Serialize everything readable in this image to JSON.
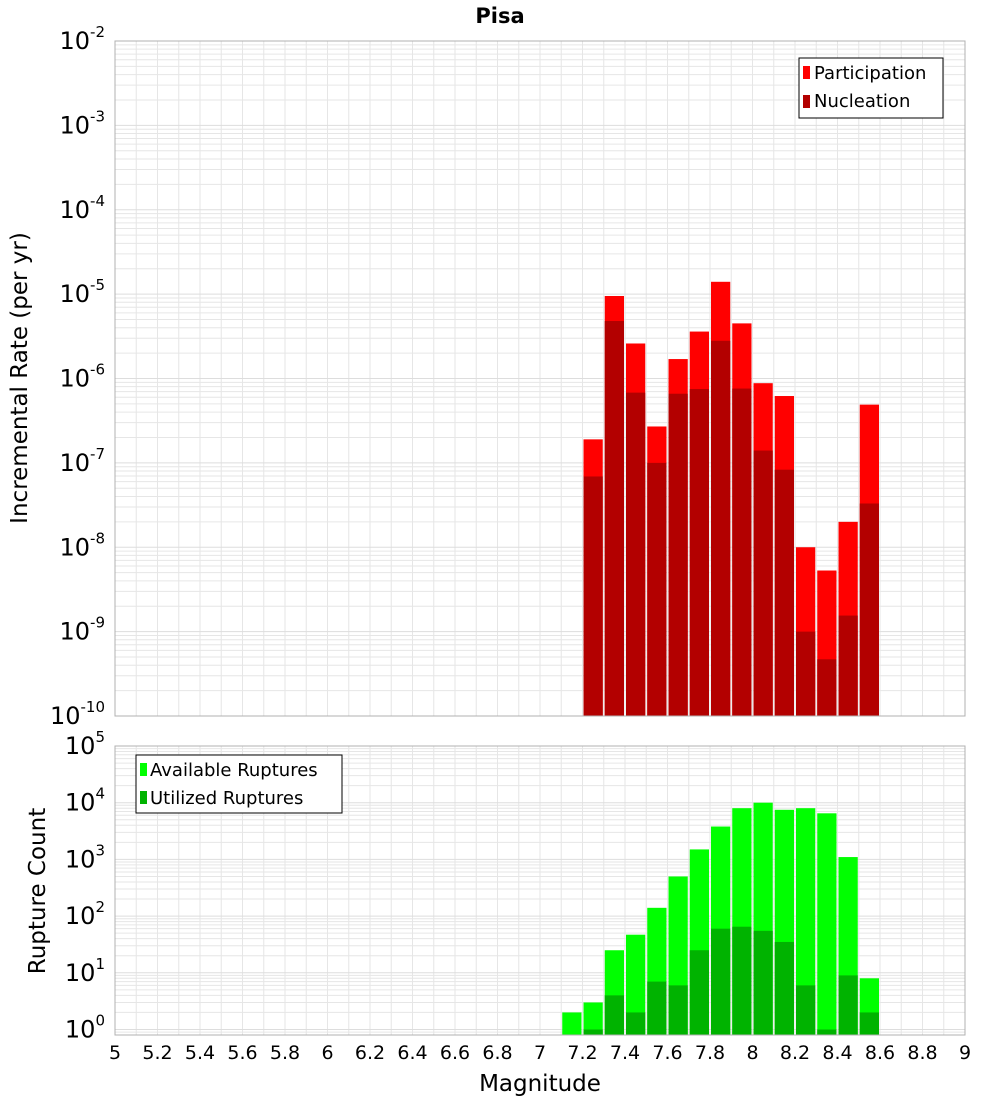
{
  "title": "Pisa",
  "xlabel": "Magnitude",
  "x_ticks": [
    "5",
    "5.2",
    "5.4",
    "5.6",
    "5.8",
    "6",
    "6.2",
    "6.4",
    "6.6",
    "6.8",
    "7",
    "7.2",
    "7.4",
    "7.6",
    "7.8",
    "8",
    "8.2",
    "8.4",
    "8.6",
    "8.8",
    "9"
  ],
  "colors": {
    "participation": "#ff0000",
    "nucleation": "#b30000",
    "available": "#00ff00",
    "utilized": "#00b300",
    "grid": "#e6e6e6",
    "frame": "#b0b0b0"
  },
  "chart_data": [
    {
      "type": "bar",
      "panel": "top",
      "ylabel": "Incremental Rate (per yr)",
      "xlim": [
        5,
        9
      ],
      "ylim": [
        1e-10,
        0.01
      ],
      "yscale": "log",
      "y_tick_exponents": [
        "-10",
        "-9",
        "-8",
        "-7",
        "-6",
        "-5",
        "-4",
        "-3",
        "-2"
      ],
      "grid": true,
      "legend_position": "top-right",
      "x": [
        7.25,
        7.35,
        7.45,
        7.55,
        7.65,
        7.75,
        7.85,
        7.95,
        8.05,
        8.15,
        8.25,
        8.35,
        8.45,
        8.55
      ],
      "bar_width": 0.1,
      "series": [
        {
          "name": "Participation",
          "values": [
            1.9e-07,
            9.5e-06,
            2.6e-06,
            2.7e-07,
            1.7e-06,
            3.6e-06,
            1.4e-05,
            4.5e-06,
            8.8e-07,
            6.2e-07,
            1e-08,
            5.3e-09,
            2e-08,
            4.9e-07
          ]
        },
        {
          "name": "Nucleation",
          "values": [
            6.9e-08,
            4.8e-06,
            6.8e-07,
            1e-07,
            6.6e-07,
            7.5e-07,
            2.8e-06,
            7.6e-07,
            1.4e-07,
            8.3e-08,
            1e-09,
            4.7e-10,
            1.55e-09,
            3.3e-08
          ]
        }
      ]
    },
    {
      "type": "bar",
      "panel": "bottom",
      "ylabel": "Rupture Count",
      "xlim": [
        5,
        9
      ],
      "ylim": [
        0.8,
        100000.0
      ],
      "yscale": "log",
      "y_tick_exponents": [
        "0",
        "1",
        "2",
        "3",
        "4",
        "5"
      ],
      "grid": true,
      "legend_position": "top-left",
      "x": [
        7.15,
        7.25,
        7.35,
        7.45,
        7.55,
        7.65,
        7.75,
        7.85,
        7.95,
        8.05,
        8.15,
        8.25,
        8.35,
        8.45,
        8.55
      ],
      "bar_width": 0.1,
      "series": [
        {
          "name": "Available Ruptures",
          "values": [
            2,
            3,
            25,
            47,
            140,
            500,
            1500,
            3800,
            8000,
            10000,
            7500,
            8000,
            6500,
            1100,
            8
          ]
        },
        {
          "name": "Utilized Ruptures",
          "values": [
            null,
            1,
            4,
            2,
            7,
            6,
            25,
            60,
            65,
            55,
            35,
            6,
            1,
            9,
            2
          ]
        }
      ]
    }
  ]
}
